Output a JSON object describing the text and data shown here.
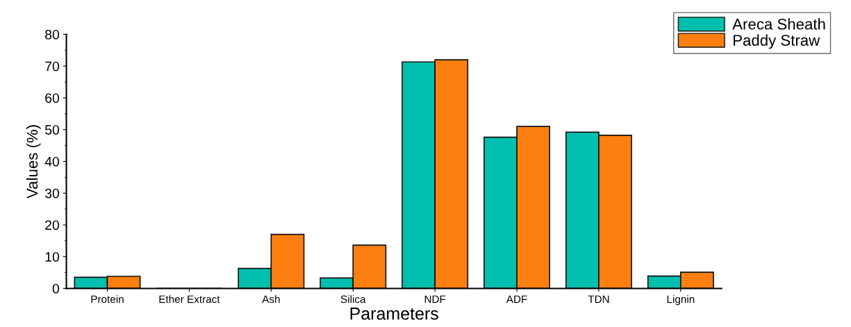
{
  "chart_data": {
    "type": "bar",
    "xlabel": "Parameters",
    "ylabel": "Values (%)",
    "categories": [
      "Protein",
      "Ether Extract",
      "Ash",
      "Silica",
      "NDF",
      "ADF",
      "TDN",
      "Lignin"
    ],
    "series": [
      {
        "name": "Areca Sheath",
        "color": "#00bfae",
        "values": [
          3.5,
          null,
          6.3,
          3.3,
          71.3,
          47.6,
          49.2,
          3.9
        ]
      },
      {
        "name": "Paddy Straw",
        "color": "#fd7f10",
        "values": [
          3.8,
          null,
          17.0,
          13.6,
          72.0,
          51.0,
          48.2,
          5.1
        ]
      }
    ],
    "ylim": [
      0,
      80
    ],
    "yticks": [
      0,
      10,
      20,
      30,
      40,
      50,
      60,
      70,
      80
    ],
    "grid": false,
    "legend": "top right"
  }
}
